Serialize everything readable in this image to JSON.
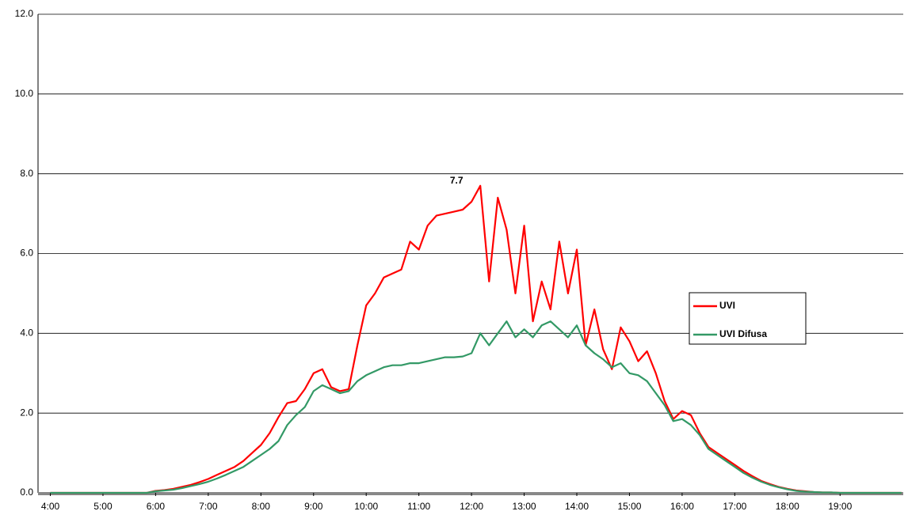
{
  "chart_data": {
    "type": "line",
    "annotation": "7.7",
    "x": [
      "4:00",
      "4:10",
      "4:20",
      "4:30",
      "4:40",
      "4:50",
      "5:00",
      "5:10",
      "5:20",
      "5:30",
      "5:40",
      "5:50",
      "6:00",
      "6:10",
      "6:20",
      "6:30",
      "6:40",
      "6:50",
      "7:00",
      "7:10",
      "7:20",
      "7:30",
      "7:40",
      "7:50",
      "8:00",
      "8:10",
      "8:20",
      "8:30",
      "8:40",
      "8:50",
      "9:00",
      "9:10",
      "9:20",
      "9:30",
      "9:40",
      "9:50",
      "10:00",
      "10:10",
      "10:20",
      "10:30",
      "10:40",
      "10:50",
      "11:00",
      "11:10",
      "11:20",
      "11:30",
      "11:40",
      "11:50",
      "12:00",
      "12:10",
      "12:20",
      "12:30",
      "12:40",
      "12:50",
      "13:00",
      "13:10",
      "13:20",
      "13:30",
      "13:40",
      "13:50",
      "14:00",
      "14:10",
      "14:20",
      "14:30",
      "14:40",
      "14:50",
      "15:00",
      "15:10",
      "15:20",
      "15:30",
      "15:40",
      "15:50",
      "16:00",
      "16:10",
      "16:20",
      "16:30",
      "16:40",
      "16:50",
      "17:00",
      "17:10",
      "17:20",
      "17:30",
      "17:40",
      "17:50",
      "18:00",
      "18:10",
      "18:20",
      "18:30",
      "18:40",
      "18:50",
      "19:00",
      "19:10",
      "19:20",
      "19:30",
      "19:40",
      "19:50",
      "20:00",
      "20:10"
    ],
    "series": [
      {
        "name": "UVI",
        "color": "#ff0000",
        "values": [
          0,
          0,
          0,
          0,
          0,
          0,
          0,
          0,
          0,
          0,
          0,
          0,
          0.05,
          0.07,
          0.1,
          0.15,
          0.2,
          0.27,
          0.35,
          0.45,
          0.55,
          0.65,
          0.8,
          1.0,
          1.2,
          1.5,
          1.9,
          2.25,
          2.3,
          2.6,
          3.0,
          3.1,
          2.65,
          2.55,
          2.6,
          3.7,
          4.7,
          5.0,
          5.4,
          5.5,
          5.6,
          6.3,
          6.1,
          6.7,
          6.95,
          7.0,
          7.05,
          7.1,
          7.3,
          7.7,
          5.3,
          7.4,
          6.6,
          5.0,
          6.7,
          4.3,
          5.3,
          4.6,
          6.3,
          5.0,
          6.1,
          3.7,
          4.6,
          3.6,
          3.1,
          4.15,
          3.8,
          3.3,
          3.55,
          3.0,
          2.3,
          1.85,
          2.05,
          1.95,
          1.5,
          1.15,
          1.0,
          0.85,
          0.7,
          0.55,
          0.42,
          0.3,
          0.22,
          0.15,
          0.1,
          0.06,
          0.04,
          0.02,
          0.01,
          0.01,
          0,
          0,
          0,
          0,
          0,
          0,
          0,
          0
        ]
      },
      {
        "name": "UVI Difusa",
        "color": "#339966",
        "values": [
          0,
          0,
          0,
          0,
          0,
          0,
          0,
          0,
          0,
          0,
          0,
          0,
          0.04,
          0.06,
          0.08,
          0.12,
          0.17,
          0.22,
          0.28,
          0.36,
          0.45,
          0.55,
          0.65,
          0.8,
          0.95,
          1.1,
          1.3,
          1.7,
          1.95,
          2.15,
          2.55,
          2.7,
          2.6,
          2.5,
          2.55,
          2.8,
          2.95,
          3.05,
          3.15,
          3.2,
          3.2,
          3.25,
          3.25,
          3.3,
          3.35,
          3.4,
          3.4,
          3.42,
          3.5,
          4.0,
          3.7,
          4.0,
          4.3,
          3.9,
          4.1,
          3.9,
          4.2,
          4.3,
          4.1,
          3.9,
          4.2,
          3.7,
          3.5,
          3.35,
          3.15,
          3.25,
          3.0,
          2.95,
          2.8,
          2.5,
          2.2,
          1.8,
          1.85,
          1.7,
          1.45,
          1.1,
          0.95,
          0.8,
          0.65,
          0.5,
          0.38,
          0.28,
          0.2,
          0.14,
          0.09,
          0.05,
          0.03,
          0.02,
          0.01,
          0.01,
          0,
          0,
          0,
          0,
          0,
          0,
          0,
          0
        ]
      }
    ],
    "xlim": [
      "3:46",
      "20:12"
    ],
    "xticks": [
      "4:00",
      "5:00",
      "6:00",
      "7:00",
      "8:00",
      "9:00",
      "10:00",
      "11:00",
      "12:00",
      "13:00",
      "14:00",
      "15:00",
      "16:00",
      "17:00",
      "18:00",
      "19:00"
    ],
    "ylim": [
      0,
      12
    ],
    "yticks": [
      {
        "value": 0,
        "label": "0.0"
      },
      {
        "value": 2,
        "label": "2.0"
      },
      {
        "value": 4,
        "label": "4.0"
      },
      {
        "value": 6,
        "label": "6.0"
      },
      {
        "value": 8,
        "label": "8.0"
      },
      {
        "value": 10,
        "label": "10.0"
      },
      {
        "value": 12,
        "label": "12.0"
      }
    ],
    "grid": true,
    "legend": "right"
  }
}
